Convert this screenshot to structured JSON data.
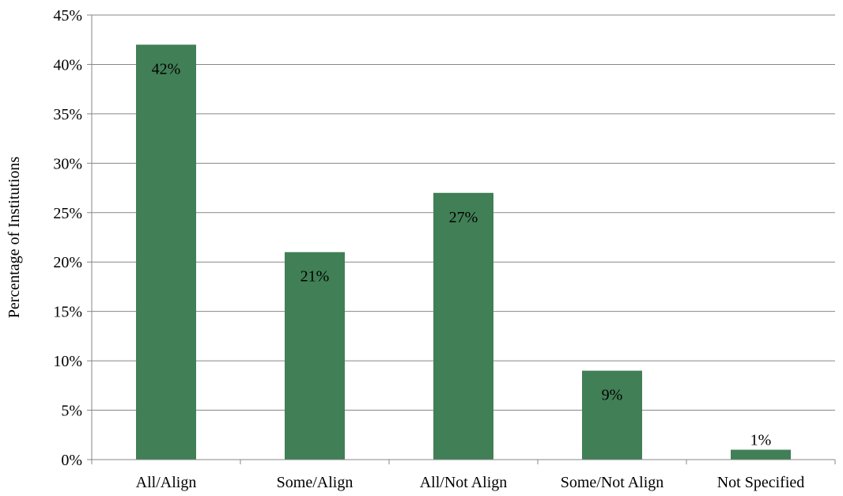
{
  "chart_data": {
    "type": "bar",
    "title": "",
    "xlabel": "",
    "ylabel": "Percentage of Institutions",
    "categories": [
      "All/Align",
      "Some/Align",
      "All/Not Align",
      "Some/Not Align",
      "Not Specified"
    ],
    "values": [
      42,
      21,
      27,
      9,
      1
    ],
    "data_labels": [
      "42%",
      "21%",
      "27%",
      "9%",
      "1%"
    ],
    "ylim": [
      0,
      45
    ],
    "yticks": [
      0,
      5,
      10,
      15,
      20,
      25,
      30,
      35,
      40,
      45
    ],
    "ytick_labels": [
      "0%",
      "5%",
      "10%",
      "15%",
      "20%",
      "25%",
      "30%",
      "35%",
      "40%",
      "45%"
    ],
    "grid": true,
    "bar_color": "#417f56",
    "grid_color": "#878787"
  }
}
